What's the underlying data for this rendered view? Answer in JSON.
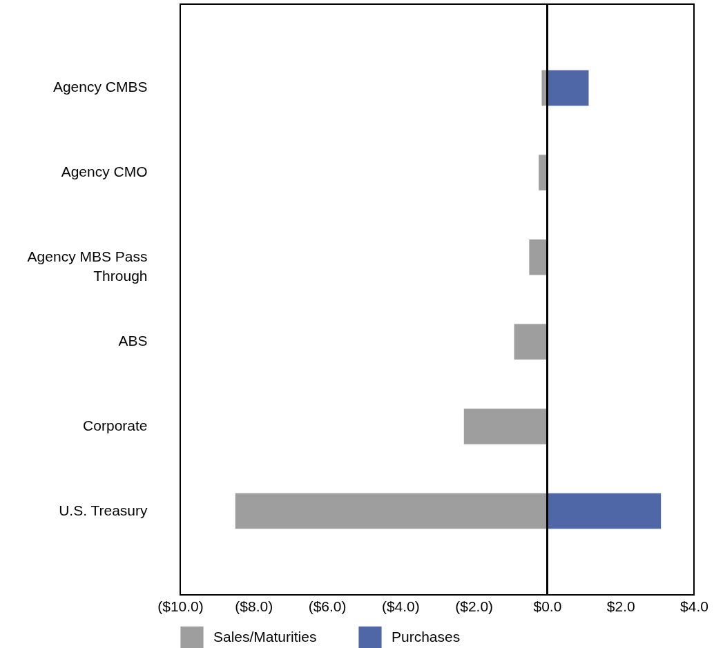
{
  "chart_data": {
    "type": "bar",
    "orientation": "horizontal",
    "categories": [
      "Agency CMBS",
      "Agency CMO",
      "Agency MBS Pass Through",
      "ABS",
      "Corporate",
      "U.S. Treasury"
    ],
    "series": [
      {
        "name": "Sales/Maturities",
        "color": "#9e9e9e",
        "values": [
          -0.15,
          -0.23,
          -0.49,
          -0.9,
          -2.27,
          -8.5
        ]
      },
      {
        "name": "Purchases",
        "color": "#4f67a6",
        "values": [
          1.13,
          null,
          null,
          null,
          null,
          3.1
        ]
      }
    ],
    "xlim": [
      -10,
      4
    ],
    "xticks": [
      {
        "value": -10,
        "label": "($10.0)"
      },
      {
        "value": -8,
        "label": "($8.0)"
      },
      {
        "value": -6,
        "label": "($6.0)"
      },
      {
        "value": -4,
        "label": "($4.0)"
      },
      {
        "value": -2,
        "label": "($2.0)"
      },
      {
        "value": 0,
        "label": "$0.0"
      },
      {
        "value": 2,
        "label": "$2.0"
      },
      {
        "value": 4,
        "label": "$4.0"
      }
    ],
    "legend": "bottom"
  }
}
